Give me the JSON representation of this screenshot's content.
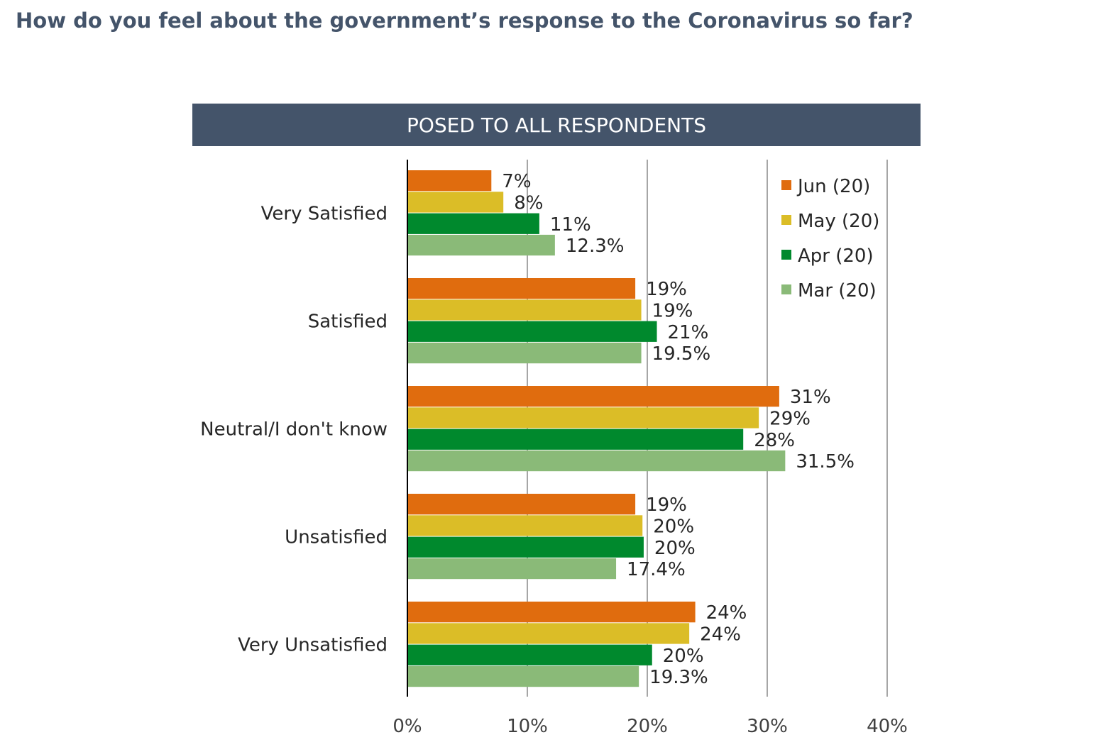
{
  "title": "How do you feel about the government’s response to the Coronavirus so far?",
  "banner": "POSED TO ALL RESPONDENTS",
  "chart_data": {
    "type": "bar",
    "orientation": "horizontal",
    "categories": [
      "Very Satisfied",
      "Satisfied",
      "Neutral/I don't know",
      "Unsatisfied",
      "Very Unsatisfied"
    ],
    "series": [
      {
        "name": "Jun (20)",
        "color": "#e06c0e",
        "values": [
          7,
          19,
          31,
          19,
          24
        ],
        "labels": [
          "7%",
          "19%",
          "31%",
          "19%",
          "24%"
        ]
      },
      {
        "name": "May (20)",
        "color": "#dbbd27",
        "values": [
          8,
          19.5,
          29.3,
          19.6,
          23.5
        ],
        "labels": [
          "8%",
          "19%",
          "29%",
          "20%",
          "24%"
        ]
      },
      {
        "name": "Apr (20)",
        "color": "#00892d",
        "values": [
          11,
          20.8,
          28,
          19.7,
          20.4
        ],
        "labels": [
          "11%",
          "21%",
          "28%",
          "20%",
          "20%"
        ]
      },
      {
        "name": "Mar (20)",
        "color": "#8aba78",
        "values": [
          12.3,
          19.5,
          31.5,
          17.4,
          19.3
        ],
        "labels": [
          "12.3%",
          "19.5%",
          "31.5%",
          "17.4%",
          "19.3%"
        ]
      }
    ],
    "x_ticks": [
      0,
      10,
      20,
      30,
      40
    ],
    "x_tick_labels": [
      "0%",
      "10%",
      "20%",
      "30%",
      "40%"
    ],
    "xlim": [
      0,
      40
    ],
    "grid": "vertical",
    "legend_placement": "top-right"
  }
}
